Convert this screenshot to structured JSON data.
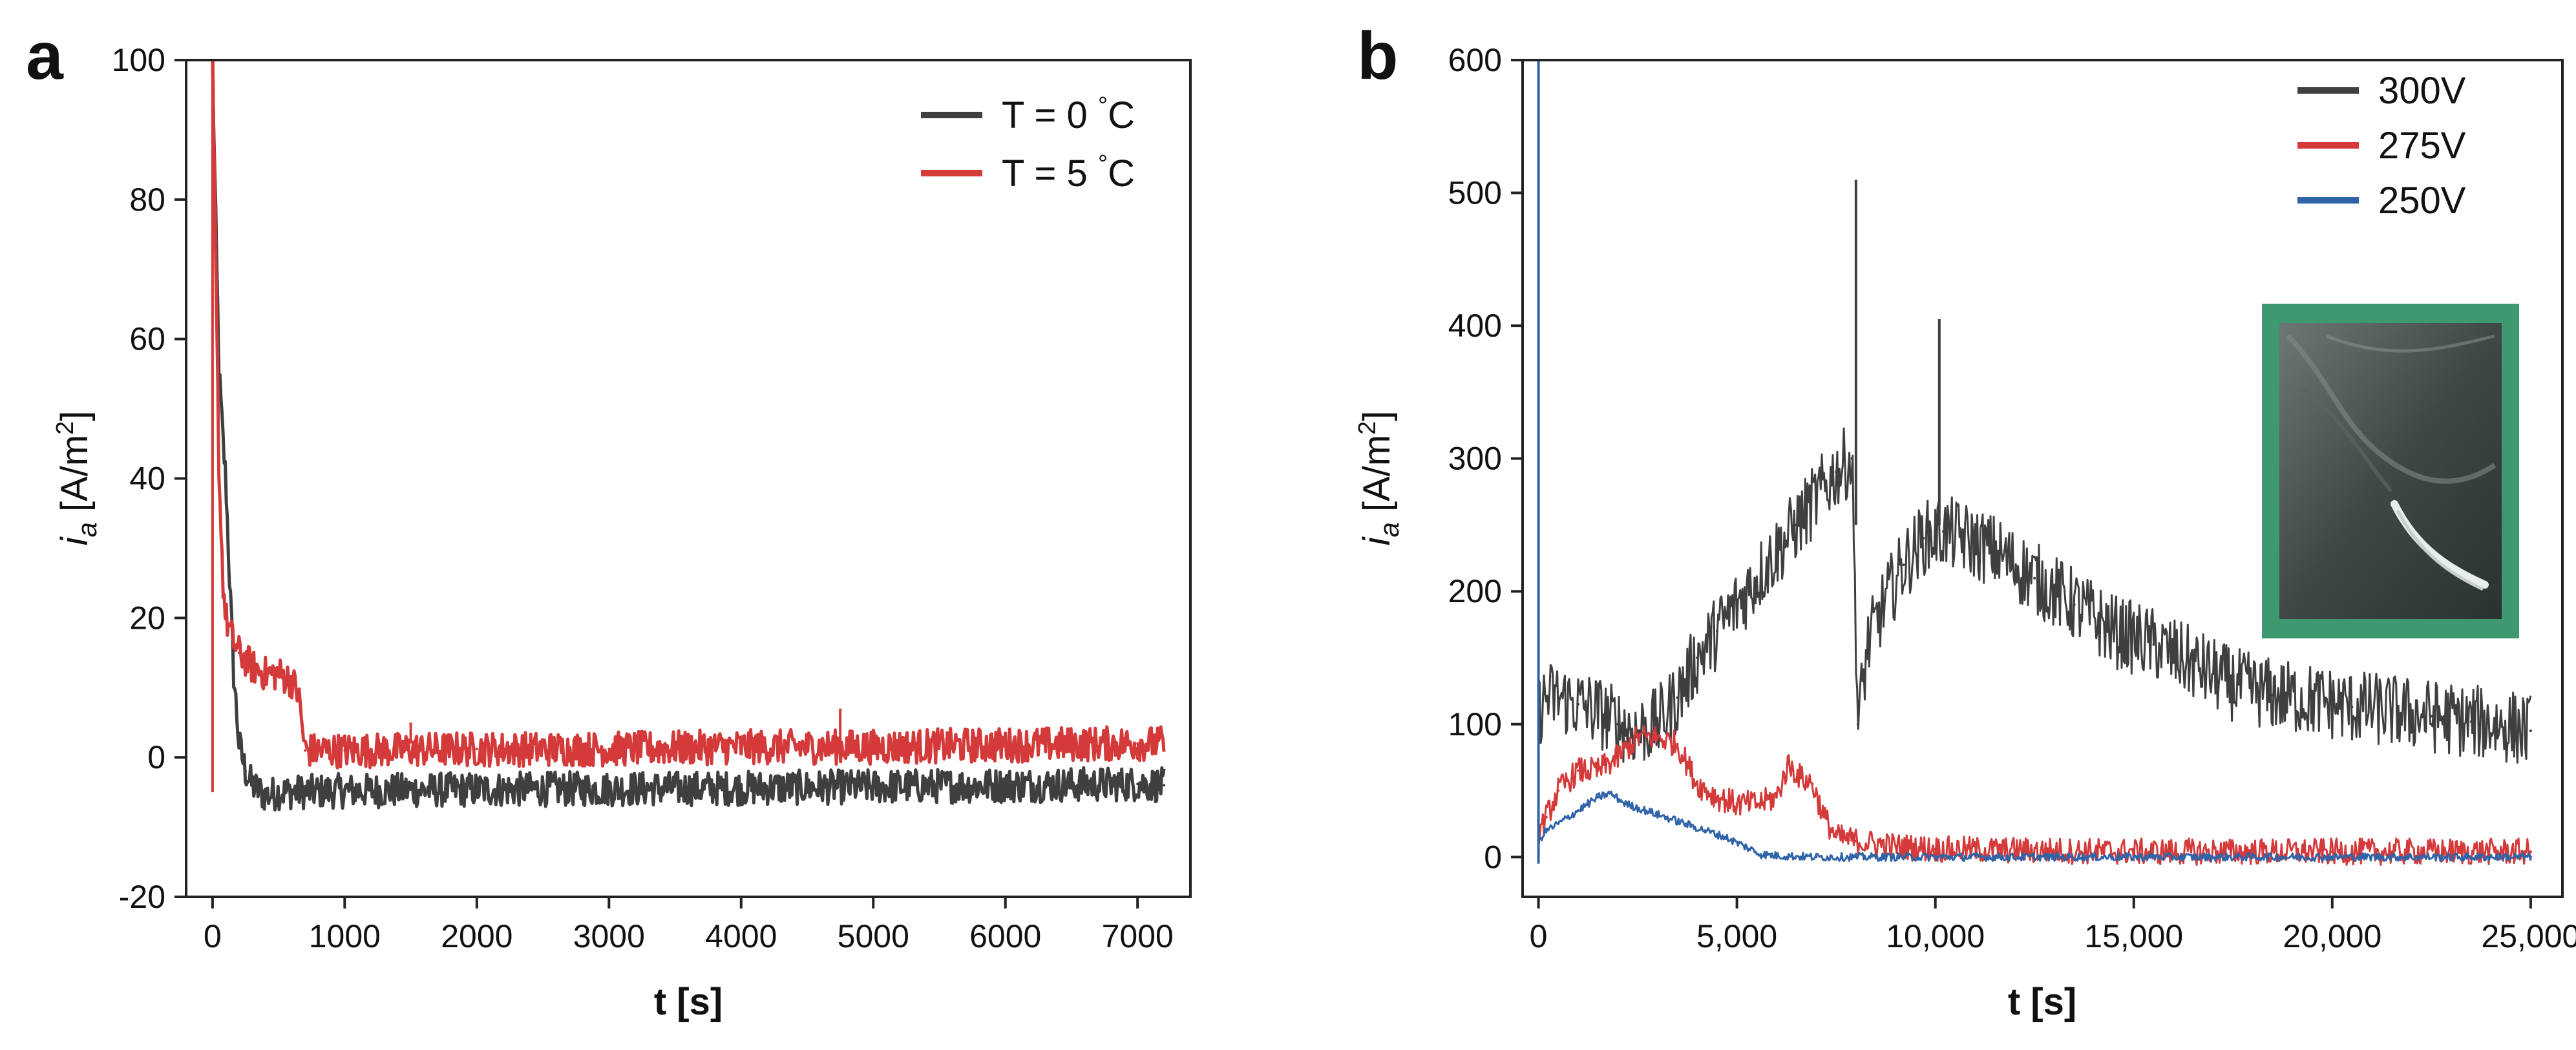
{
  "chart_data": [
    {
      "panel": "a",
      "type": "line",
      "title": "",
      "xlabel": "t [s]",
      "ylabel_main": "i",
      "ylabel_sub": "a",
      "ylabel_unit": " [A/m",
      "ylabel_sup": "2",
      "ylabel_close": "]",
      "xlim": [
        -200,
        7400
      ],
      "ylim": [
        -20,
        100
      ],
      "xticks": [
        0,
        1000,
        2000,
        3000,
        4000,
        5000,
        6000,
        7000
      ],
      "xtick_labels": [
        "0",
        "1000",
        "2000",
        "3000",
        "4000",
        "5000",
        "6000",
        "7000"
      ],
      "yticks": [
        -20,
        0,
        20,
        40,
        60,
        80,
        100
      ],
      "ytick_labels": [
        "-20",
        "0",
        "20",
        "40",
        "60",
        "80",
        "100"
      ],
      "legend_position": "top-right",
      "series": [
        {
          "name": "T = 0 °C",
          "legend_text": "T = 0 ",
          "legend_deg": "°",
          "legend_unit": "C",
          "color": "#3d3f41",
          "band": 2.5,
          "x": [
            0,
            20,
            50,
            80,
            100,
            130,
            160,
            200,
            250,
            300,
            400,
            500,
            1000,
            2000,
            3000,
            4000,
            5000,
            6000,
            7000,
            7200
          ],
          "y": [
            100,
            80,
            55,
            45,
            40,
            25,
            12,
            2,
            -2,
            -4,
            -5.5,
            -5,
            -4.8,
            -4.6,
            -4.5,
            -4.4,
            -4.2,
            -4,
            -3.8,
            -4
          ]
        },
        {
          "name": "T = 5 °C",
          "legend_text": "T = 5 ",
          "legend_deg": "°",
          "legend_unit": "C",
          "color": "#d43a3a",
          "band": 2.5,
          "x": [
            0,
            20,
            50,
            80,
            100,
            150,
            200,
            300,
            400,
            500,
            600,
            650,
            700,
            1000,
            2000,
            3000,
            4000,
            5000,
            6000,
            7000,
            7200
          ],
          "y": [
            100,
            75,
            40,
            25,
            20,
            17,
            15,
            13,
            12,
            12,
            11,
            9,
            1,
            1,
            1.2,
            1.2,
            1.5,
            1.5,
            1.8,
            2,
            2
          ]
        }
      ],
      "annotations": [
        {
          "text": "",
          "x": 1500,
          "y": 5
        },
        {
          "text": "",
          "x": 4750,
          "y": 7
        }
      ]
    },
    {
      "panel": "b",
      "type": "line",
      "title": "",
      "xlabel": "t [s]",
      "ylabel_main": "i",
      "ylabel_sub": "a",
      "ylabel_unit": " [A/m",
      "ylabel_sup": "2",
      "ylabel_close": "]",
      "xlim": [
        -400,
        25800
      ],
      "ylim": [
        -30,
        600
      ],
      "xticks": [
        0,
        5000,
        10000,
        15000,
        20000,
        25000
      ],
      "xtick_labels": [
        "0",
        "5,000",
        "10,000",
        "15,000",
        "20,000",
        "25,000"
      ],
      "yticks": [
        0,
        100,
        200,
        300,
        400,
        500,
        600
      ],
      "ytick_labels": [
        "0",
        "100",
        "200",
        "300",
        "400",
        "500",
        "600"
      ],
      "legend_position": "top-right",
      "inset": "micrograph image, top-right, green frame",
      "series": [
        {
          "name": "300V",
          "legend_text": "300V",
          "color": "#3d3f41",
          "band": 28,
          "x": [
            0,
            200,
            500,
            1000,
            1500,
            2000,
            2500,
            3000,
            3500,
            4000,
            4500,
            5000,
            5500,
            6000,
            6500,
            7000,
            7500,
            7900,
            8050,
            8300,
            8700,
            9200,
            9700,
            10200,
            10700,
            11500,
            12500,
            13500,
            14500,
            15500,
            16500,
            17500,
            18500,
            19500,
            20500,
            21500,
            22500,
            23500,
            24500,
            25000
          ],
          "y": [
            110,
            120,
            120,
            115,
            110,
            100,
            95,
            100,
            120,
            150,
            170,
            190,
            210,
            230,
            250,
            270,
            290,
            300,
            100,
            160,
            190,
            220,
            240,
            245,
            240,
            230,
            210,
            190,
            170,
            160,
            145,
            130,
            122,
            118,
            113,
            110,
            106,
            102,
            98,
            95
          ]
        },
        {
          "name": "275V",
          "legend_text": "275V",
          "color": "#d43a3a",
          "band": 10,
          "x": [
            0,
            200,
            500,
            1000,
            1500,
            2000,
            2500,
            3000,
            3500,
            4000,
            4500,
            5000,
            5500,
            6000,
            6300,
            6600,
            6900,
            7200,
            7500,
            8000,
            9000,
            10000,
            12000,
            15000,
            20000,
            25000
          ],
          "y": [
            18,
            30,
            50,
            65,
            65,
            75,
            90,
            90,
            85,
            55,
            45,
            40,
            40,
            45,
            70,
            60,
            55,
            30,
            15,
            12,
            8,
            6,
            5,
            4,
            4,
            4
          ]
        },
        {
          "name": "250V",
          "legend_text": "250V",
          "color": "#2f64a8",
          "band": 3,
          "x": [
            0,
            200,
            500,
            1000,
            1500,
            1800,
            2200,
            2700,
            3200,
            3700,
            4200,
            4700,
            5200,
            5600,
            6000,
            7000,
            8000,
            10000,
            15000,
            20000,
            25000
          ],
          "y": [
            12,
            20,
            25,
            35,
            45,
            48,
            40,
            35,
            30,
            25,
            20,
            15,
            8,
            2,
            1,
            0,
            0,
            0,
            0,
            0,
            0
          ]
        }
      ],
      "annotations": [
        {
          "text": "",
          "x": 8000,
          "y": 510
        },
        {
          "text": "",
          "x": 10100,
          "y": 405
        }
      ]
    }
  ]
}
